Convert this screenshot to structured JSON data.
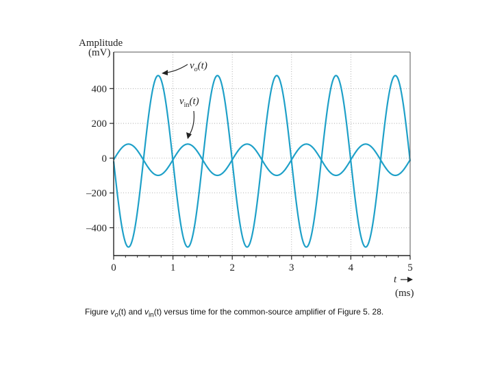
{
  "chart_data": {
    "type": "line",
    "title": "",
    "ylabel": "Amplitude",
    "yunit": "(mV)",
    "xlabel": "t",
    "xunit": "(ms)",
    "xlim": [
      0,
      5
    ],
    "ylim": [
      -560,
      610
    ],
    "xticks": [
      0,
      1,
      2,
      3,
      4,
      5
    ],
    "xtick_labels": [
      "0",
      "1",
      "2",
      "3",
      "4",
      "5"
    ],
    "yticks": [
      -400,
      -200,
      0,
      200,
      400
    ],
    "ytick_labels": [
      "–400",
      "–200",
      "0",
      "200",
      "400"
    ],
    "grid": true,
    "series": [
      {
        "name": "v_o(t)",
        "label_main": "v",
        "label_sub": "o",
        "label_arg": "(t)",
        "function": "sine",
        "frequency_khz": 1,
        "amplitude_mv": 493,
        "offset_mv": -18,
        "phase": "inverted",
        "peak_mv": 475,
        "trough_mv": -511,
        "color": "#1ea0c8"
      },
      {
        "name": "v_in(t)",
        "label_main": "v",
        "label_sub": "in",
        "label_arg": "(t)",
        "function": "sine",
        "frequency_khz": 1,
        "amplitude_mv": 90,
        "offset_mv": -9,
        "phase": "normal",
        "peak_mv": 81,
        "trough_mv": -99,
        "color": "#1ea0c8"
      }
    ]
  },
  "caption": {
    "prefix": "Figure  ",
    "vo_main": "v",
    "vo_sub": "o",
    "vo_arg": "(t)",
    "and": " and ",
    "vin_main": "v",
    "vin_sub": "in",
    "vin_arg": "(t)",
    "rest": " versus time for the common-source amplifier of Figure 5. 28."
  }
}
